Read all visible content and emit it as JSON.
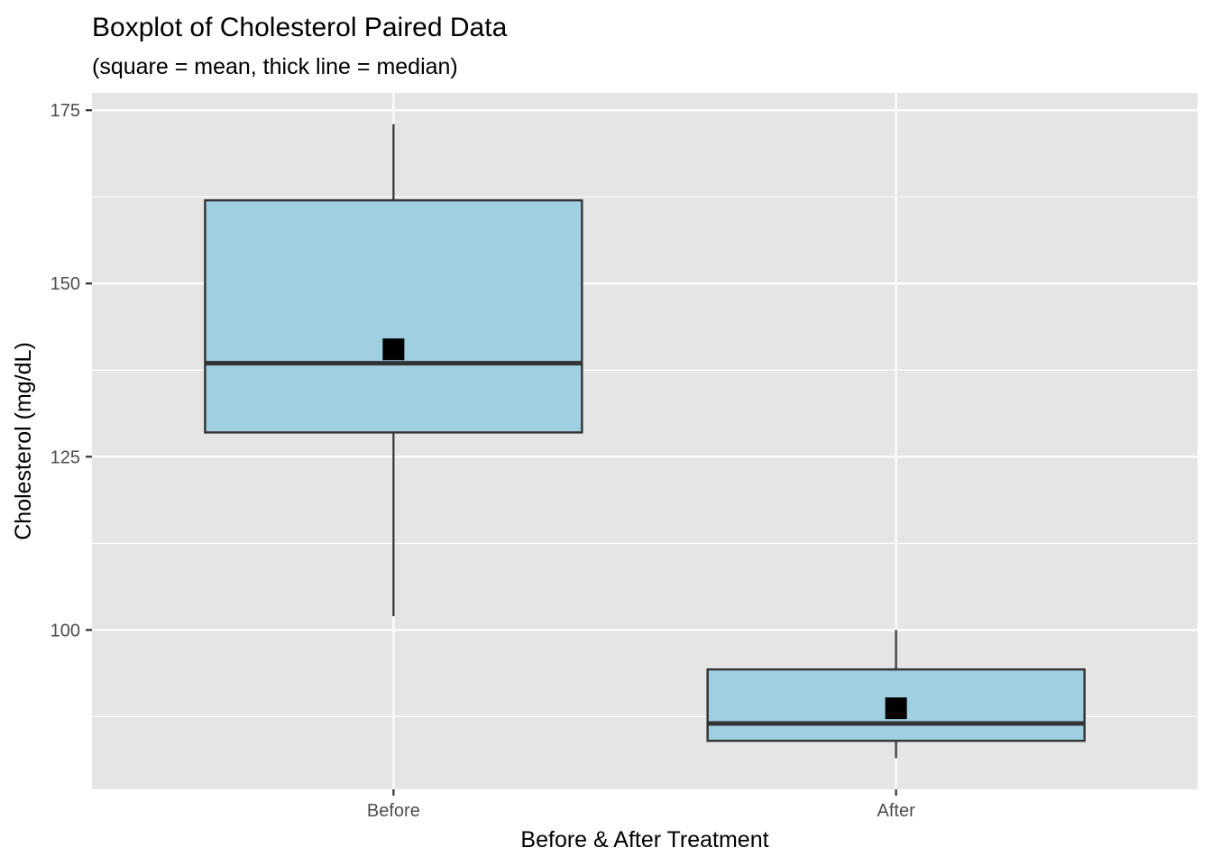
{
  "chart_data": {
    "type": "boxplot",
    "title": "Boxplot of Cholesterol Paired Data",
    "subtitle": "(square = mean, thick line = median)",
    "xlabel": "Before & After Treatment",
    "ylabel": "Cholesterol (mg/dL)",
    "ylim": [
      77,
      177.5
    ],
    "yticks": [
      100,
      125,
      150,
      175
    ],
    "grid": true,
    "legend": "none",
    "categories": [
      "Before",
      "After"
    ],
    "boxes": [
      {
        "category": "Before",
        "whisker_low": 102,
        "q1": 128.5,
        "median": 138.5,
        "q3": 162,
        "whisker_high": 173,
        "mean": 140.5
      },
      {
        "category": "After",
        "whisker_low": 81.5,
        "q1": 84,
        "median": 86.5,
        "q3": 94.3,
        "whisker_high": 100,
        "mean": 88.7
      }
    ],
    "colors": {
      "panel_background": "#e5e5e5",
      "grid": "#ffffff",
      "box_fill": "#9fcfe0",
      "box_outline": "#333333",
      "mean_marker": "#000000"
    }
  }
}
